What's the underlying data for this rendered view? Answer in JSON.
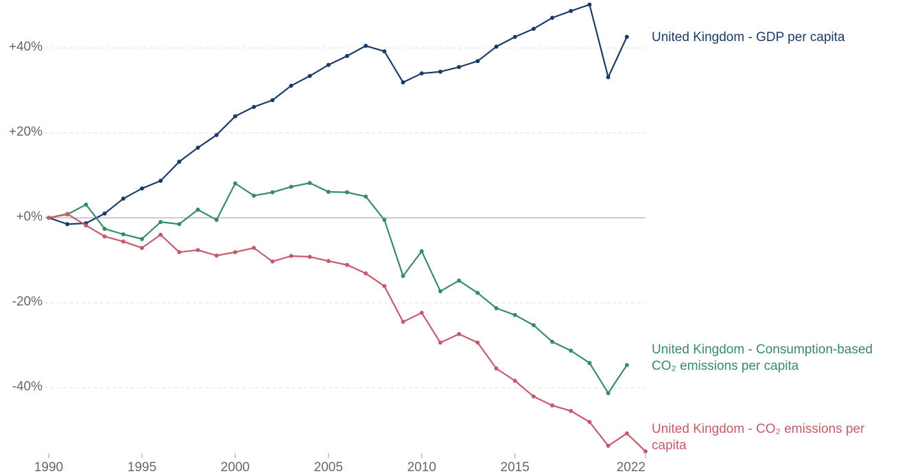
{
  "chart_data": {
    "type": "line",
    "x": [
      1990,
      1991,
      1992,
      1993,
      1994,
      1995,
      1996,
      1997,
      1998,
      1999,
      2000,
      2001,
      2002,
      2003,
      2004,
      2005,
      2006,
      2007,
      2008,
      2009,
      2010,
      2011,
      2012,
      2013,
      2014,
      2015,
      2016,
      2017,
      2018,
      2019,
      2020,
      2021,
      2022
    ],
    "series": [
      {
        "name": "United Kingdom - GDP per capita",
        "color": "#1b3a68",
        "values": [
          0,
          -1.5,
          -1.3,
          1.0,
          4.5,
          6.9,
          8.7,
          13.2,
          16.5,
          19.5,
          23.9,
          26.1,
          27.7,
          31.1,
          33.4,
          36.0,
          38.1,
          40.5,
          39.2,
          31.9,
          34.0,
          34.4,
          35.5,
          36.9,
          40.3,
          42.6,
          44.5,
          47.1,
          48.7,
          50.2,
          33.1,
          42.6,
          null
        ]
      },
      {
        "name": "United Kingdom - Consumption-based CO₂ emissions per capita",
        "color": "#388c64",
        "values": [
          0,
          0.8,
          3.1,
          -2.6,
          -3.9,
          -5.0,
          -1.0,
          -1.5,
          1.9,
          -0.5,
          8.1,
          5.2,
          6.0,
          7.3,
          8.2,
          6.1,
          6.0,
          5.0,
          -0.5,
          -13.7,
          -7.9,
          -17.3,
          -14.8,
          -17.7,
          -21.3,
          -22.9,
          -25.3,
          -29.2,
          -31.3,
          -34.2,
          -41.3,
          -34.7,
          null
        ]
      },
      {
        "name": "United Kingdom - CO₂ emissions per capita",
        "color": "#c55a6a",
        "values": [
          0,
          0.9,
          -1.8,
          -4.4,
          -5.6,
          -7.1,
          -4.0,
          -8.1,
          -7.6,
          -8.9,
          -8.1,
          -7.1,
          -10.3,
          -9.0,
          -9.2,
          -10.2,
          -11.1,
          -13.1,
          -16.1,
          -24.5,
          -22.4,
          -29.4,
          -27.4,
          -29.4,
          -35.5,
          -38.4,
          -42.1,
          -44.2,
          -45.5,
          -48.1,
          -53.7,
          -50.8,
          -55.0
        ]
      }
    ],
    "xlim": [
      1990,
      2022
    ],
    "xticks": [
      1990,
      1995,
      2000,
      2005,
      2010,
      2015,
      2022
    ],
    "ylim": [
      -55.5,
      50.5
    ],
    "yticks": [
      {
        "value": -40,
        "label": "-40%"
      },
      {
        "value": -20,
        "label": "-20%"
      },
      {
        "value": 0,
        "label": "+0%"
      },
      {
        "value": 20,
        "label": "+20%"
      },
      {
        "value": 40,
        "label": "+40%"
      }
    ],
    "grid": true
  }
}
